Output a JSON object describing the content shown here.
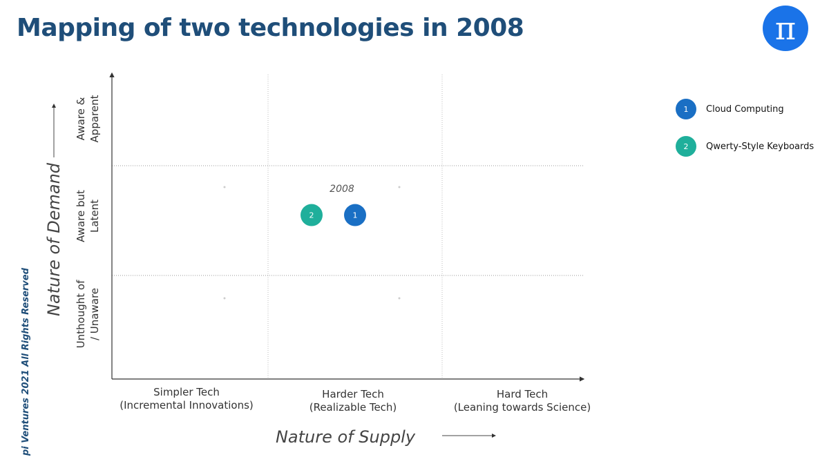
{
  "header": {
    "title": "Mapping of two technologies in 2008",
    "logo_symbol": "π"
  },
  "footer": {
    "copyright": "pi Ventures 2021 All Rights Reserved"
  },
  "colors": {
    "title": "#1f4e79",
    "logo": "#1a73e8",
    "item1": "#1a6fc4",
    "item2": "#1faf9b"
  },
  "legend": [
    {
      "number": "1",
      "label": "Cloud Computing",
      "color": "#1a6fc4"
    },
    {
      "number": "2",
      "label": "Qwerty-Style Keyboards",
      "color": "#1faf9b"
    }
  ],
  "chart_data": {
    "type": "scatter",
    "xlabel": "Nature of Supply",
    "ylabel": "Nature of Demand",
    "x_categories": [
      [
        "Simpler Tech",
        "(Incremental Innovations)"
      ],
      [
        "Harder Tech",
        "(Realizable Tech)"
      ],
      [
        "Hard Tech",
        "(Leaning towards Science)"
      ]
    ],
    "y_categories": [
      [
        "Unthought of",
        "/ Unaware"
      ],
      [
        "Aware but",
        "Latent"
      ],
      [
        "Aware &",
        "Apparent"
      ]
    ],
    "annotation": "2008",
    "points": [
      {
        "label": "1",
        "name": "Cloud Computing",
        "x": 1.5,
        "y": 1.55
      },
      {
        "label": "2",
        "name": "Qwerty-Style Keyboards",
        "x": 1.25,
        "y": 1.55
      }
    ]
  }
}
